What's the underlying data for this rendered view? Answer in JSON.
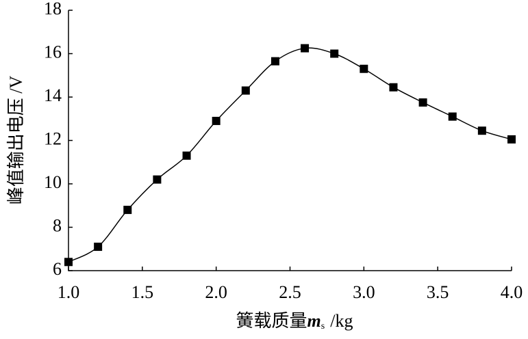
{
  "chart_data": {
    "type": "line",
    "x_label": {
      "text": "簧载质量",
      "var": "m",
      "sub": "s",
      "unit": "/kg"
    },
    "y_label": "峰值输出电压 /V",
    "x": [
      1.0,
      1.2,
      1.4,
      1.6,
      1.8,
      2.0,
      2.2,
      2.4,
      2.6,
      2.8,
      3.0,
      3.2,
      3.4,
      3.6,
      3.8,
      4.0
    ],
    "values": [
      6.4,
      7.1,
      8.8,
      10.2,
      11.3,
      12.9,
      14.3,
      15.65,
      16.25,
      16.0,
      15.3,
      14.45,
      13.75,
      13.1,
      12.45,
      12.05
    ],
    "color": "#000000",
    "marker": "square",
    "smooth": true,
    "xlim": [
      1,
      4
    ],
    "ylim": [
      6,
      18
    ],
    "xticks": [
      {
        "value": 1,
        "label": "1.0"
      },
      {
        "value": 1.5,
        "label": "1.5"
      },
      {
        "value": 2,
        "label": "2.0"
      },
      {
        "value": 2.5,
        "label": "2.5"
      },
      {
        "value": 3,
        "label": "3.0"
      },
      {
        "value": 3.5,
        "label": "3.5"
      },
      {
        "value": 4,
        "label": "4.0"
      }
    ],
    "yticks": [
      6,
      8,
      10,
      12,
      14,
      16,
      18
    ],
    "grid": false
  }
}
